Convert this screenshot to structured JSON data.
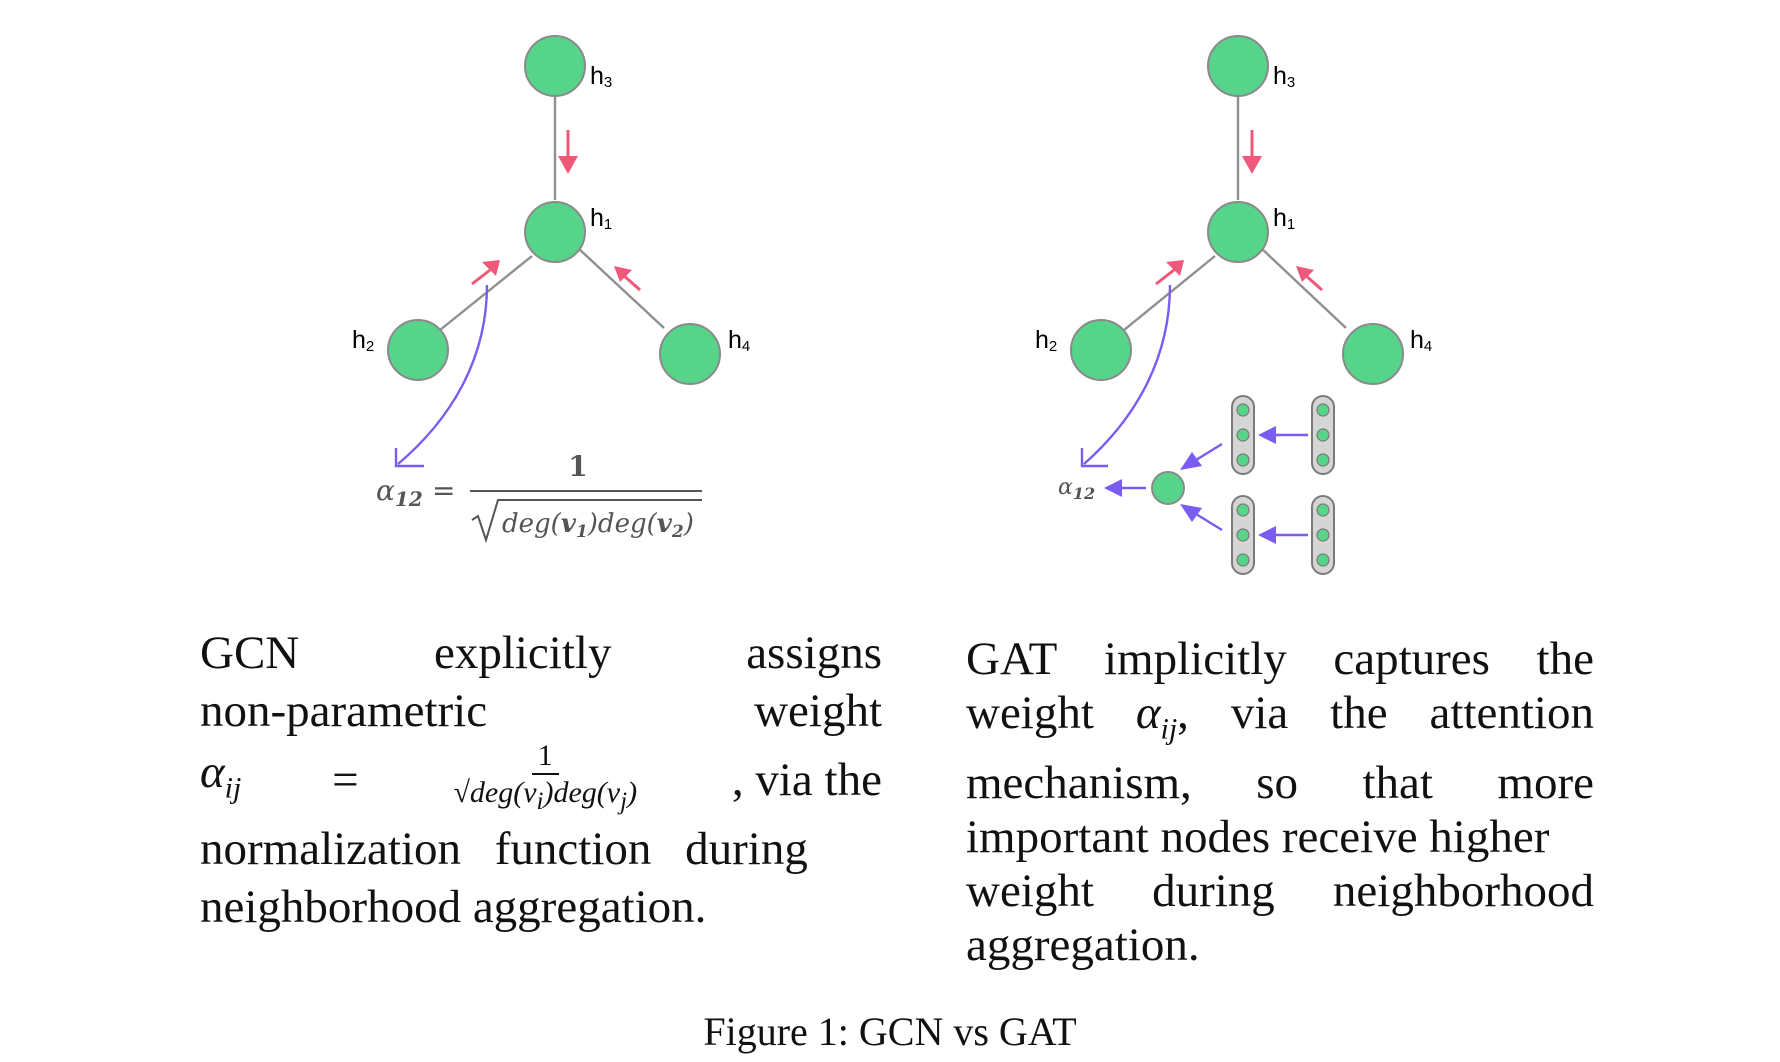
{
  "gcn_panel": {
    "nodes": {
      "h3": {
        "base": "h",
        "sub": "3"
      },
      "h1": {
        "base": "h",
        "sub": "1"
      },
      "h2": {
        "base": "h",
        "sub": "2"
      },
      "h4": {
        "base": "h",
        "sub": "4"
      }
    },
    "formula": {
      "lhs_sym": "α",
      "lhs_sub": "12",
      "eq": "=",
      "numerator": "1",
      "den_a": "deg(",
      "v1": "v",
      "v1_sub": "1",
      "den_b": ")deg(",
      "v2": "v",
      "v2_sub": "2",
      "den_c": ")"
    }
  },
  "gat_panel": {
    "nodes": {
      "h3": {
        "base": "h",
        "sub": "3"
      },
      "h1": {
        "base": "h",
        "sub": "1"
      },
      "h2": {
        "base": "h",
        "sub": "2"
      },
      "h4": {
        "base": "h",
        "sub": "4"
      }
    },
    "alpha": {
      "sym": "α",
      "sub": "12"
    }
  },
  "colors": {
    "node_fill": "#55d48a",
    "edge_arrow_red": "#f0587a",
    "attention_purple": "#7b5cf0",
    "pill_gray": "#d5d5d5"
  },
  "captions": {
    "gcn": {
      "w1": "GCN",
      "w2": "explicitly",
      "w3": "assigns",
      "w4": "non-parametric",
      "w5": "weight",
      "alpha": "α",
      "alpha_sub": "ij",
      "eq": "=",
      "frac_num": "1",
      "frac_den_a": "deg(v",
      "frac_den_sub_i": "i",
      "frac_den_b": ")deg(v",
      "frac_den_sub_j": "j",
      "frac_den_c": ")",
      "via": ", via the",
      "line4": "normalization function during",
      "line5": "neighborhood aggregation."
    },
    "gat": {
      "l1a": "GAT",
      "l1b": "implicitly",
      "l1c": "captures",
      "l1d": "the",
      "l2a": "weight",
      "alpha": "α",
      "alpha_sub": "ij",
      "l2b": ",",
      "l2c": "via",
      "l2d": "the",
      "l2e": "attention",
      "l3a": "mechanism,",
      "l3b": "so",
      "l3c": "that",
      "l3d": "more",
      "l4": "important nodes receive higher",
      "l5a": "weight",
      "l5b": "during",
      "l5c": "neighborhood",
      "l6": "aggregation."
    }
  },
  "figure_caption": "Figure 1: GCN vs GAT"
}
